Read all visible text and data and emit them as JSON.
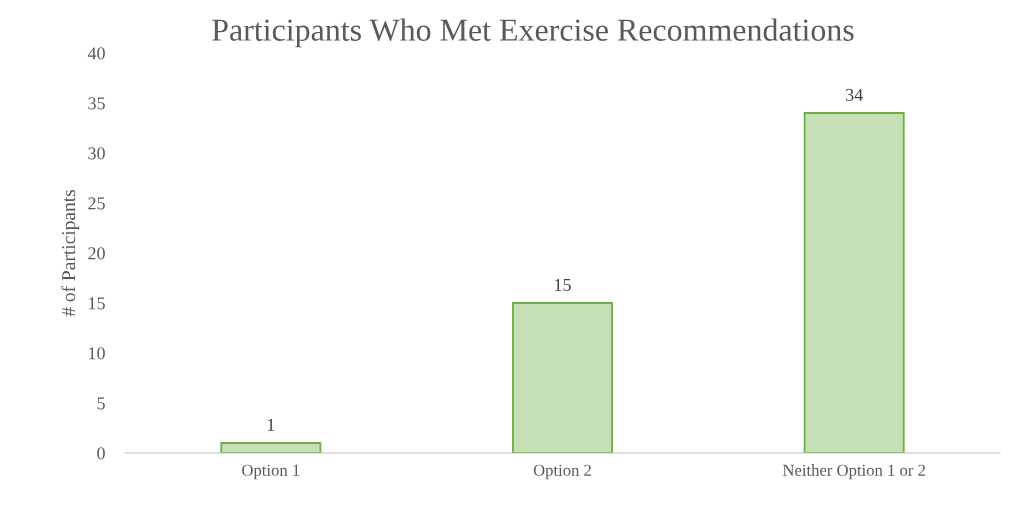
{
  "chart_data": {
    "type": "bar",
    "title": "Participants Who Met Exercise Recommendations",
    "ylabel": "# of Participants",
    "categories": [
      "Option 1",
      "Option 2",
      "Neither Option 1 or 2"
    ],
    "values": [
      1,
      15,
      34
    ],
    "color": "#c5e0b4",
    "ylim": [
      0,
      40
    ],
    "yticks": [
      0,
      5,
      10,
      15,
      20,
      25,
      30,
      35,
      40
    ],
    "grid": false,
    "data_labels": true
  }
}
